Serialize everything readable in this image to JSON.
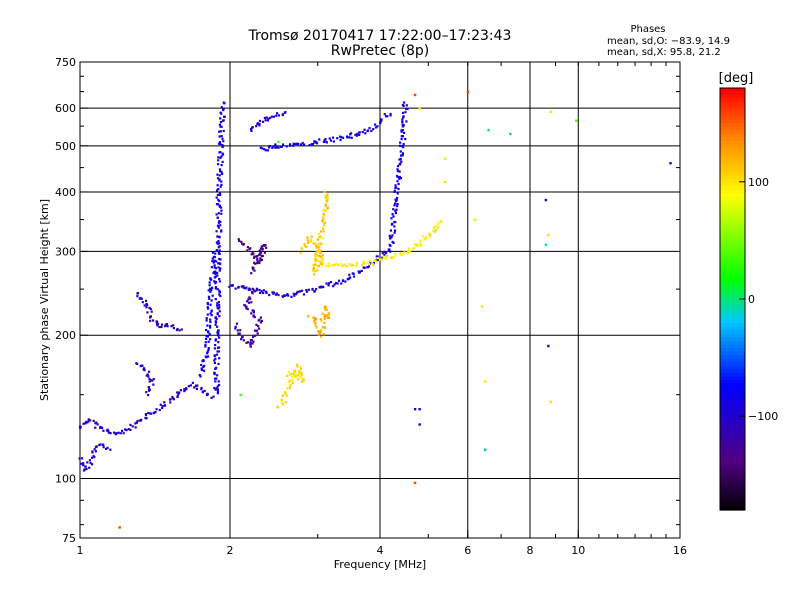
{
  "title_line1": "Tromsø 20170417 17:22:00–17:23:43",
  "title_line2": "RwPretec (8p)",
  "stats": {
    "heading": "Phases",
    "line_o": "mean, sd,O: −83.9, 14.9",
    "line_x": "mean, sd,X:  95.8, 21.2"
  },
  "colorbar": {
    "unit_label": "[deg]",
    "range": [
      -180,
      180
    ],
    "ticks": [
      {
        "value": 100,
        "label": "100"
      },
      {
        "value": 0,
        "label": "0"
      },
      {
        "value": -100,
        "label": "−100"
      }
    ]
  },
  "chart_data": {
    "type": "scatter",
    "title": "Tromsø 20170417 17:22:00–17:23:43",
    "subtitle": "RwPretec (8p)",
    "xlabel": "Frequency [MHz]",
    "ylabel": "Stationary phase Virtual Height [km]",
    "xscale": "log",
    "yscale": "log",
    "xlim": [
      1,
      16
    ],
    "ylim": [
      75,
      750
    ],
    "x_ticks": [
      {
        "value": 1,
        "label": "1"
      },
      {
        "value": 2,
        "label": "2"
      },
      {
        "value": 4,
        "label": "4"
      },
      {
        "value": 6,
        "label": "6"
      },
      {
        "value": 8,
        "label": "8"
      },
      {
        "value": 10,
        "label": "10"
      },
      {
        "value": 16,
        "label": "16"
      }
    ],
    "y_ticks": [
      {
        "value": 75,
        "label": "75"
      },
      {
        "value": 100,
        "label": "100"
      },
      {
        "value": 200,
        "label": "200"
      },
      {
        "value": 300,
        "label": "300"
      },
      {
        "value": 400,
        "label": "400"
      },
      {
        "value": 500,
        "label": "500"
      },
      {
        "value": 600,
        "label": "600"
      },
      {
        "value": 750,
        "label": "750"
      }
    ],
    "x_gridlines": [
      2,
      4,
      6,
      8,
      10
    ],
    "y_gridlines": [
      100,
      200,
      300,
      400,
      500,
      600
    ],
    "color_encoding": "phase [deg]",
    "traces": [
      {
        "phase": -100,
        "points": [
          [
            1.0,
            128
          ],
          [
            1.05,
            133
          ],
          [
            1.1,
            127
          ],
          [
            1.2,
            124
          ],
          [
            1.3,
            130
          ],
          [
            1.4,
            138
          ],
          [
            1.5,
            145
          ],
          [
            1.6,
            152
          ],
          [
            1.7,
            158
          ],
          [
            1.8,
            150
          ],
          [
            1.85,
            148
          ]
        ]
      },
      {
        "phase": -95,
        "points": [
          [
            1.0,
            110
          ],
          [
            1.03,
            104
          ],
          [
            1.06,
            112
          ],
          [
            1.1,
            118
          ],
          [
            1.15,
            115
          ]
        ]
      },
      {
        "phase": -90,
        "points": [
          [
            1.88,
            150
          ],
          [
            1.88,
            190
          ],
          [
            1.89,
            230
          ],
          [
            1.89,
            270
          ],
          [
            1.9,
            320
          ],
          [
            1.9,
            380
          ],
          [
            1.91,
            450
          ],
          [
            1.92,
            520
          ],
          [
            1.93,
            580
          ],
          [
            1.93,
            620
          ]
        ]
      },
      {
        "phase": -85,
        "points": [
          [
            1.75,
            165
          ],
          [
            1.8,
            185
          ],
          [
            1.82,
            230
          ],
          [
            1.84,
            260
          ],
          [
            1.86,
            300
          ]
        ]
      },
      {
        "phase": -92,
        "points": [
          [
            2.0,
            255
          ],
          [
            2.2,
            250
          ],
          [
            2.4,
            245
          ],
          [
            2.6,
            242
          ],
          [
            2.8,
            246
          ],
          [
            3.0,
            250
          ],
          [
            3.2,
            256
          ],
          [
            3.4,
            262
          ],
          [
            3.6,
            270
          ],
          [
            3.8,
            280
          ],
          [
            4.0,
            292
          ],
          [
            4.2,
            305
          ]
        ]
      },
      {
        "phase": -88,
        "points": [
          [
            4.2,
            305
          ],
          [
            4.25,
            340
          ],
          [
            4.3,
            380
          ],
          [
            4.35,
            420
          ],
          [
            4.4,
            470
          ],
          [
            4.45,
            520
          ],
          [
            4.48,
            570
          ],
          [
            4.5,
            620
          ]
        ]
      },
      {
        "phase": -85,
        "points": [
          [
            2.3,
            490
          ],
          [
            2.5,
            500
          ],
          [
            2.8,
            505
          ],
          [
            3.0,
            510
          ],
          [
            3.2,
            515
          ],
          [
            3.5,
            525
          ],
          [
            3.8,
            540
          ],
          [
            4.0,
            560
          ],
          [
            4.2,
            590
          ]
        ]
      },
      {
        "phase": -110,
        "points": [
          [
            1.3,
            245
          ],
          [
            1.35,
            235
          ],
          [
            1.4,
            215
          ],
          [
            1.45,
            210
          ],
          [
            1.5,
            210
          ],
          [
            1.6,
            205
          ]
        ]
      },
      {
        "phase": -105,
        "points": [
          [
            1.3,
            175
          ],
          [
            1.35,
            170
          ],
          [
            1.4,
            160
          ],
          [
            1.35,
            150
          ]
        ]
      },
      {
        "phase": -120,
        "points": [
          [
            2.05,
            210
          ],
          [
            2.1,
            200
          ],
          [
            2.2,
            190
          ],
          [
            2.3,
            215
          ],
          [
            2.15,
            230
          ],
          [
            2.25,
            250
          ]
        ]
      },
      {
        "phase": -130,
        "points": [
          [
            2.1,
            320
          ],
          [
            2.2,
            300
          ],
          [
            2.3,
            285
          ],
          [
            2.35,
            310
          ],
          [
            2.2,
            270
          ]
        ]
      },
      {
        "phase": -100,
        "points": [
          [
            2.2,
            540
          ],
          [
            2.3,
            560
          ],
          [
            2.45,
            580
          ],
          [
            2.6,
            590
          ]
        ]
      },
      {
        "phase": 95,
        "points": [
          [
            3.0,
            290
          ],
          [
            3.1,
            280
          ],
          [
            3.2,
            282
          ],
          [
            3.4,
            280
          ],
          [
            3.6,
            282
          ],
          [
            3.8,
            284
          ],
          [
            4.0,
            288
          ],
          [
            4.2,
            292
          ],
          [
            4.4,
            296
          ],
          [
            4.6,
            302
          ],
          [
            4.8,
            312
          ],
          [
            5.0,
            325
          ],
          [
            5.2,
            340
          ],
          [
            5.3,
            352
          ]
        ]
      },
      {
        "phase": 110,
        "points": [
          [
            2.8,
            300
          ],
          [
            2.9,
            320
          ],
          [
            3.0,
            310
          ],
          [
            3.05,
            290
          ],
          [
            2.95,
            270
          ],
          [
            3.1,
            360
          ],
          [
            3.12,
            400
          ]
        ]
      },
      {
        "phase": 120,
        "points": [
          [
            2.9,
            220
          ],
          [
            3.0,
            210
          ],
          [
            3.05,
            200
          ],
          [
            3.1,
            230
          ],
          [
            3.2,
            215
          ]
        ]
      },
      {
        "phase": 100,
        "points": [
          [
            2.6,
            165
          ],
          [
            2.7,
            168
          ],
          [
            2.8,
            160
          ],
          [
            2.75,
            172
          ],
          [
            2.55,
            145
          ],
          [
            2.5,
            140
          ]
        ]
      },
      {
        "phase": -100,
        "points": [
          [
            4.8,
            130
          ],
          [
            4.8,
            140
          ],
          [
            6.5,
            115
          ],
          [
            8.7,
            190
          ],
          [
            8.6,
            385
          ],
          [
            15.3,
            460
          ],
          [
            4.7,
            140
          ]
        ]
      },
      {
        "phase": 100,
        "points": [
          [
            5.4,
            470
          ],
          [
            5.4,
            420
          ],
          [
            6.2,
            350
          ],
          [
            6.4,
            230
          ],
          [
            6.5,
            160
          ],
          [
            8.7,
            325
          ],
          [
            8.8,
            145
          ],
          [
            8.8,
            590
          ],
          [
            4.8,
            600
          ]
        ]
      },
      {
        "phase": 40,
        "points": [
          [
            9.9,
            565
          ],
          [
            2.5,
            510
          ],
          [
            2.1,
            150
          ]
        ]
      },
      {
        "phase": 160,
        "points": [
          [
            1.2,
            79
          ],
          [
            4.7,
            98
          ],
          [
            4.7,
            640
          ],
          [
            6.0,
            650
          ]
        ]
      },
      {
        "phase": 0,
        "points": [
          [
            6.5,
            115
          ],
          [
            8.6,
            310
          ],
          [
            7.3,
            530
          ],
          [
            6.6,
            540
          ]
        ]
      }
    ]
  }
}
